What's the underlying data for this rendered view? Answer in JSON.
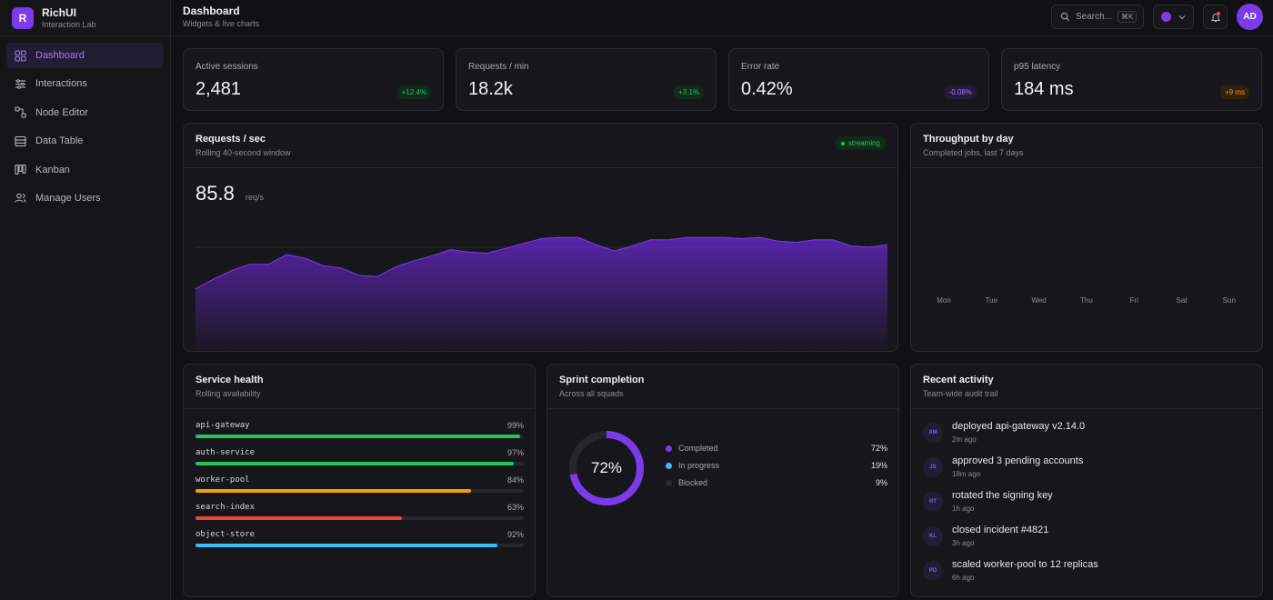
{
  "brand": {
    "logo": "R",
    "name": "RichUI",
    "sub": "Interaction Lab"
  },
  "nav": [
    {
      "label": "Dashboard",
      "icon": "grid-icon",
      "active": true
    },
    {
      "label": "Interactions",
      "icon": "sliders-icon"
    },
    {
      "label": "Node Editor",
      "icon": "nodes-icon"
    },
    {
      "label": "Data Table",
      "icon": "table-icon"
    },
    {
      "label": "Kanban",
      "icon": "kanban-icon"
    },
    {
      "label": "Manage Users",
      "icon": "users-icon"
    }
  ],
  "topbar": {
    "title": "Dashboard",
    "subtitle": "Widgets & live charts",
    "search_label": "Search...",
    "search_kbd": "⌘K",
    "avatar": "AD"
  },
  "stats": [
    {
      "label": "Active sessions",
      "value": "2,481",
      "delta": "+12.4%",
      "tone": "green"
    },
    {
      "label": "Requests / min",
      "value": "18.2k",
      "delta": "+3.1%",
      "tone": "green"
    },
    {
      "label": "Error rate",
      "value": "0.42%",
      "delta": "-0.08%",
      "tone": "purple"
    },
    {
      "label": "p95 latency",
      "value": "184 ms",
      "delta": "+9 ms",
      "tone": "orange"
    }
  ],
  "requests": {
    "title": "Requests / sec",
    "subtitle": "Rolling 40-second window",
    "badge": "streaming",
    "value": "85.8",
    "unit": "req/s"
  },
  "throughput": {
    "title": "Throughput by day",
    "subtitle": "Completed jobs, last 7 days"
  },
  "health": {
    "title": "Service health",
    "subtitle": "Rolling availability",
    "services": [
      {
        "name": "api-gateway",
        "pct": "99%",
        "value": 99,
        "color": "#22c55e"
      },
      {
        "name": "auth-service",
        "pct": "97%",
        "value": 97,
        "color": "#22c55e"
      },
      {
        "name": "worker-pool",
        "pct": "84%",
        "value": 84,
        "color": "#f59e0b"
      },
      {
        "name": "search-index",
        "pct": "63%",
        "value": 63,
        "color": "#ef4444"
      },
      {
        "name": "object-store",
        "pct": "92%",
        "value": 92,
        "color": "#38bdf8"
      }
    ]
  },
  "sprint": {
    "title": "Sprint completion",
    "subtitle": "Across all squads",
    "center": "72%",
    "legend": [
      {
        "label": "Completed",
        "pct": "72%",
        "value": 72,
        "color": "#7c3aed"
      },
      {
        "label": "In progress",
        "pct": "19%",
        "value": 19,
        "color": "#38bdf8"
      },
      {
        "label": "Blocked",
        "pct": "9%",
        "value": 9,
        "color": "#2a2a30"
      }
    ]
  },
  "activity": {
    "title": "Recent activity",
    "subtitle": "Team-wide audit trail",
    "items": [
      {
        "initials": "AM",
        "text": "deployed api-gateway v2.14.0",
        "time": "2m ago"
      },
      {
        "initials": "JS",
        "text": "approved 3 pending accounts",
        "time": "18m ago"
      },
      {
        "initials": "RT",
        "text": "rotated the signing key",
        "time": "1h ago"
      },
      {
        "initials": "KL",
        "text": "closed incident #4821",
        "time": "3h ago"
      },
      {
        "initials": "PD",
        "text": "scaled worker-pool to 12 replicas",
        "time": "6h ago"
      }
    ]
  },
  "chart_data": [
    {
      "type": "area",
      "title": "Requests / sec",
      "ylim": [
        0,
        120
      ],
      "values": [
        52,
        60,
        67,
        72,
        72,
        80,
        77,
        71,
        69,
        63,
        62,
        70,
        75,
        79,
        84,
        82,
        81,
        85,
        89,
        93,
        94,
        94,
        88,
        83,
        87,
        92,
        92,
        94,
        94,
        94,
        93,
        94,
        91,
        90,
        92,
        92,
        87,
        86,
        88
      ],
      "color": "#7c3aed"
    },
    {
      "type": "bar",
      "title": "Throughput by day",
      "categories": [
        "Mon",
        "Tue",
        "Wed",
        "Thu",
        "Fri",
        "Sat",
        "Sun"
      ]
    }
  ]
}
